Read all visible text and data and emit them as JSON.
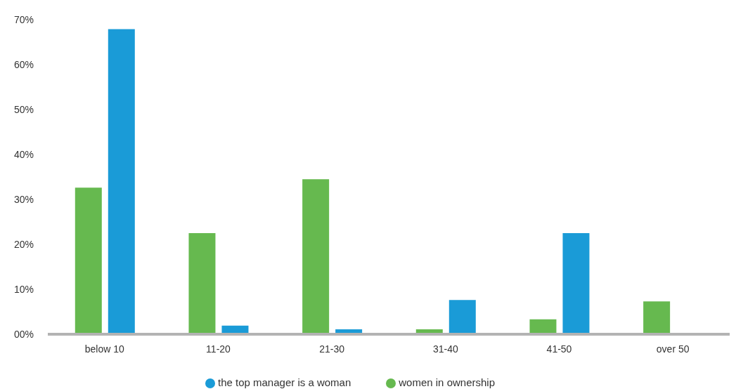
{
  "chart_data": {
    "type": "bar",
    "categories": [
      "below 10",
      "11-20",
      "21-30",
      "31-40",
      "41-50",
      "over 50"
    ],
    "series": [
      {
        "name": "women in ownership",
        "color": "#66b94f",
        "values": [
          32.6,
          22.5,
          34.5,
          1.1,
          3.3,
          7.3
        ]
      },
      {
        "name": "the top manager is a woman",
        "color": "#1a9bd7",
        "values": [
          67.9,
          1.9,
          1.1,
          7.6,
          22.5,
          null
        ]
      }
    ],
    "ylim": [
      0,
      70
    ],
    "yticks": [
      {
        "value": 0,
        "label": "00%"
      },
      {
        "value": 10,
        "label": "10%"
      },
      {
        "value": 20,
        "label": "20%"
      },
      {
        "value": 30,
        "label": "30%"
      },
      {
        "value": 40,
        "label": "40%"
      },
      {
        "value": 50,
        "label": "50%"
      },
      {
        "value": 60,
        "label": "60%"
      },
      {
        "value": 70,
        "label": "70%"
      }
    ],
    "grid": false,
    "legend": "bottom"
  }
}
